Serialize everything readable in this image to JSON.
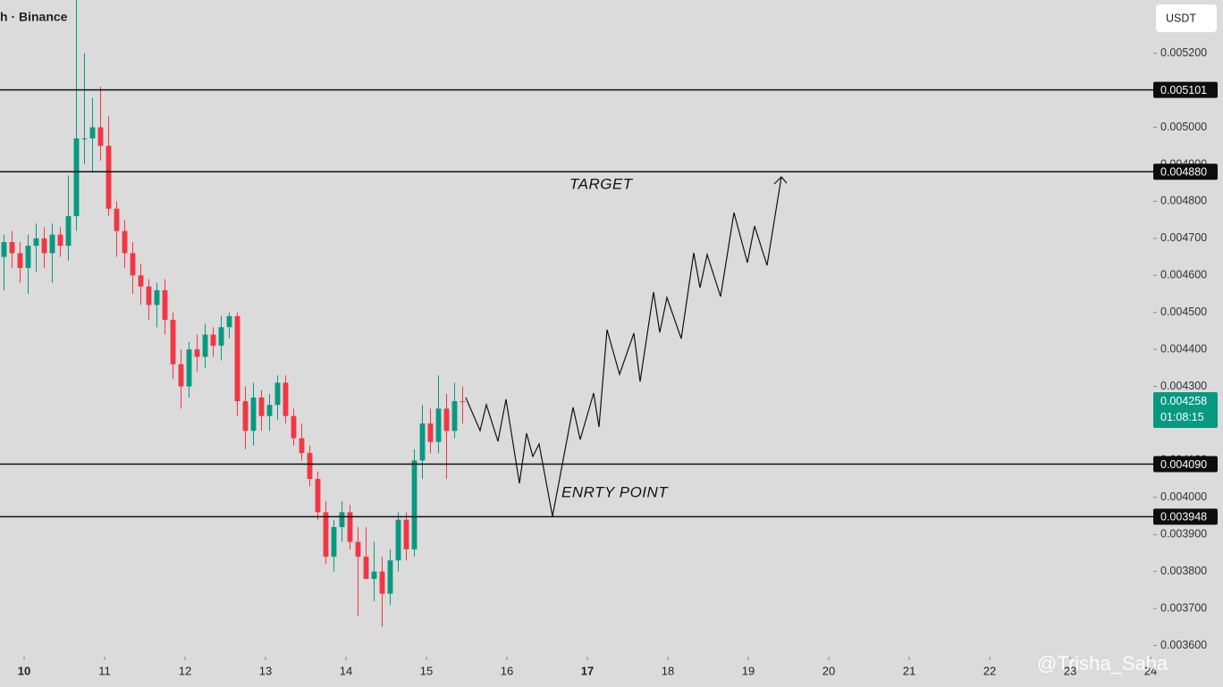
{
  "chart_data": {
    "type": "candlestick",
    "title": "h · Binance",
    "currency": "USDT",
    "x": [
      9.75,
      9.85,
      9.95,
      10.05,
      10.15,
      10.25,
      10.35,
      10.45,
      10.55,
      10.65,
      10.75,
      10.85,
      10.95,
      11.05,
      11.15,
      11.25,
      11.35,
      11.45,
      11.55,
      11.65,
      11.75,
      11.85,
      11.95,
      12.05,
      12.15,
      12.25,
      12.35,
      12.45,
      12.55,
      12.65,
      12.75,
      12.85,
      12.95,
      13.05,
      13.15,
      13.25,
      13.35,
      13.45,
      13.55,
      13.65,
      13.75,
      13.85,
      13.95,
      14.05,
      14.15,
      14.25,
      14.35,
      14.45,
      14.55,
      14.65,
      14.75,
      14.85,
      14.95,
      15.05,
      15.15,
      15.25,
      15.35,
      15.45
    ],
    "open": [
      0.00465,
      0.00469,
      0.00466,
      0.00462,
      0.00468,
      0.0047,
      0.00466,
      0.00471,
      0.00468,
      0.00476,
      0.00497,
      0.00497,
      0.005,
      0.00495,
      0.00478,
      0.00472,
      0.00466,
      0.0046,
      0.00457,
      0.00452,
      0.00456,
      0.00448,
      0.00436,
      0.0043,
      0.0044,
      0.00438,
      0.00444,
      0.00441,
      0.00446,
      0.00449,
      0.00426,
      0.00418,
      0.00427,
      0.00422,
      0.00425,
      0.00431,
      0.00422,
      0.00416,
      0.00412,
      0.00405,
      0.00396,
      0.00384,
      0.00392,
      0.00396,
      0.00388,
      0.00384,
      0.00378,
      0.0038,
      0.00374,
      0.00383,
      0.00394,
      0.00386,
      0.0041,
      0.0042,
      0.00415,
      0.00424,
      0.00418,
      0.00426
    ],
    "high": [
      0.00471,
      0.00472,
      0.00469,
      0.00471,
      0.00474,
      0.00473,
      0.00474,
      0.00473,
      0.00487,
      0.00535,
      0.0052,
      0.00508,
      0.00511,
      0.00503,
      0.0048,
      0.00475,
      0.00469,
      0.00463,
      0.00459,
      0.00458,
      0.00459,
      0.0045,
      0.0044,
      0.00442,
      0.00444,
      0.00447,
      0.00446,
      0.00449,
      0.0045,
      0.0045,
      0.0043,
      0.00431,
      0.00429,
      0.00428,
      0.00433,
      0.00433,
      0.00424,
      0.0042,
      0.00414,
      0.00407,
      0.00399,
      0.00394,
      0.00399,
      0.00398,
      0.00392,
      0.00392,
      0.00388,
      0.00384,
      0.00386,
      0.00396,
      0.00396,
      0.00413,
      0.00425,
      0.00424,
      0.00433,
      0.00428,
      0.00431,
      0.0043
    ],
    "low": [
      0.00456,
      0.00462,
      0.00458,
      0.00455,
      0.00461,
      0.00462,
      0.00458,
      0.00465,
      0.00464,
      0.00472,
      0.0049,
      0.00488,
      0.00491,
      0.00476,
      0.00465,
      0.00462,
      0.00455,
      0.00452,
      0.00448,
      0.00446,
      0.00444,
      0.00432,
      0.00424,
      0.00427,
      0.00434,
      0.00435,
      0.00438,
      0.00437,
      0.00443,
      0.00422,
      0.00413,
      0.00414,
      0.00418,
      0.00418,
      0.00421,
      0.0042,
      0.00414,
      0.0041,
      0.00403,
      0.00394,
      0.00382,
      0.0038,
      0.00388,
      0.00386,
      0.00368,
      0.00378,
      0.00372,
      0.00365,
      0.00371,
      0.0038,
      0.00383,
      0.00384,
      0.00405,
      0.00412,
      0.00412,
      0.00405,
      0.00416,
      0.0042
    ],
    "close": [
      0.00469,
      0.00466,
      0.00462,
      0.00468,
      0.0047,
      0.00466,
      0.00471,
      0.00468,
      0.00476,
      0.00497,
      0.00497,
      0.005,
      0.00495,
      0.00478,
      0.00472,
      0.00466,
      0.0046,
      0.00457,
      0.00452,
      0.00456,
      0.00448,
      0.00436,
      0.0043,
      0.0044,
      0.00438,
      0.00444,
      0.00441,
      0.00446,
      0.00449,
      0.00426,
      0.00418,
      0.00427,
      0.00422,
      0.00425,
      0.00431,
      0.00422,
      0.00416,
      0.00412,
      0.00405,
      0.00396,
      0.00384,
      0.00392,
      0.00396,
      0.00388,
      0.00384,
      0.00378,
      0.0038,
      0.00374,
      0.00383,
      0.00394,
      0.00386,
      0.0041,
      0.0042,
      0.00415,
      0.00424,
      0.00418,
      0.00426,
      0.004258
    ],
    "up_color": "#089981",
    "down_color": "#f23645",
    "xlim": [
      9.7,
      24.033
    ],
    "xticks": [
      10,
      11,
      12,
      13,
      14,
      15,
      16,
      17,
      18,
      19,
      20,
      21,
      22,
      23,
      24
    ],
    "ylim": [
      0.00357,
      0.005344
    ],
    "yticks": [
      {
        "value": 0.0036,
        "label": "0.003600"
      },
      {
        "value": 0.0037,
        "label": "0.003700"
      },
      {
        "value": 0.0038,
        "label": "0.003800"
      },
      {
        "value": 0.0039,
        "label": "0.003900"
      },
      {
        "value": 0.004,
        "label": "0.004000"
      },
      {
        "value": 0.0041,
        "label": "0.004100"
      },
      {
        "value": 0.0042,
        "label": "0.004200"
      },
      {
        "value": 0.0043,
        "label": "0.004300"
      },
      {
        "value": 0.0044,
        "label": "0.004400"
      },
      {
        "value": 0.0045,
        "label": "0.004500"
      },
      {
        "value": 0.0046,
        "label": "0.004600"
      },
      {
        "value": 0.0047,
        "label": "0.004700"
      },
      {
        "value": 0.0048,
        "label": "0.004800"
      },
      {
        "value": 0.0049,
        "label": "0.004900"
      },
      {
        "value": 0.005,
        "label": "0.005000"
      },
      {
        "value": 0.0051,
        "label": "0.005100"
      },
      {
        "value": 0.0052,
        "label": "0.005200"
      }
    ],
    "levels": [
      {
        "value": 0.005101,
        "label": "0.005101"
      },
      {
        "value": 0.00488,
        "label": "0.004880"
      },
      {
        "value": 0.00409,
        "label": "0.004090"
      },
      {
        "value": 0.003948,
        "label": "0.003948"
      }
    ],
    "last_price": {
      "value": 0.004258,
      "label": "0.004258"
    },
    "countdown": "01:08:15",
    "annotations": [
      "TARGET",
      "ENRTY POINT"
    ],
    "watermark": "@Trisha_Saha"
  }
}
